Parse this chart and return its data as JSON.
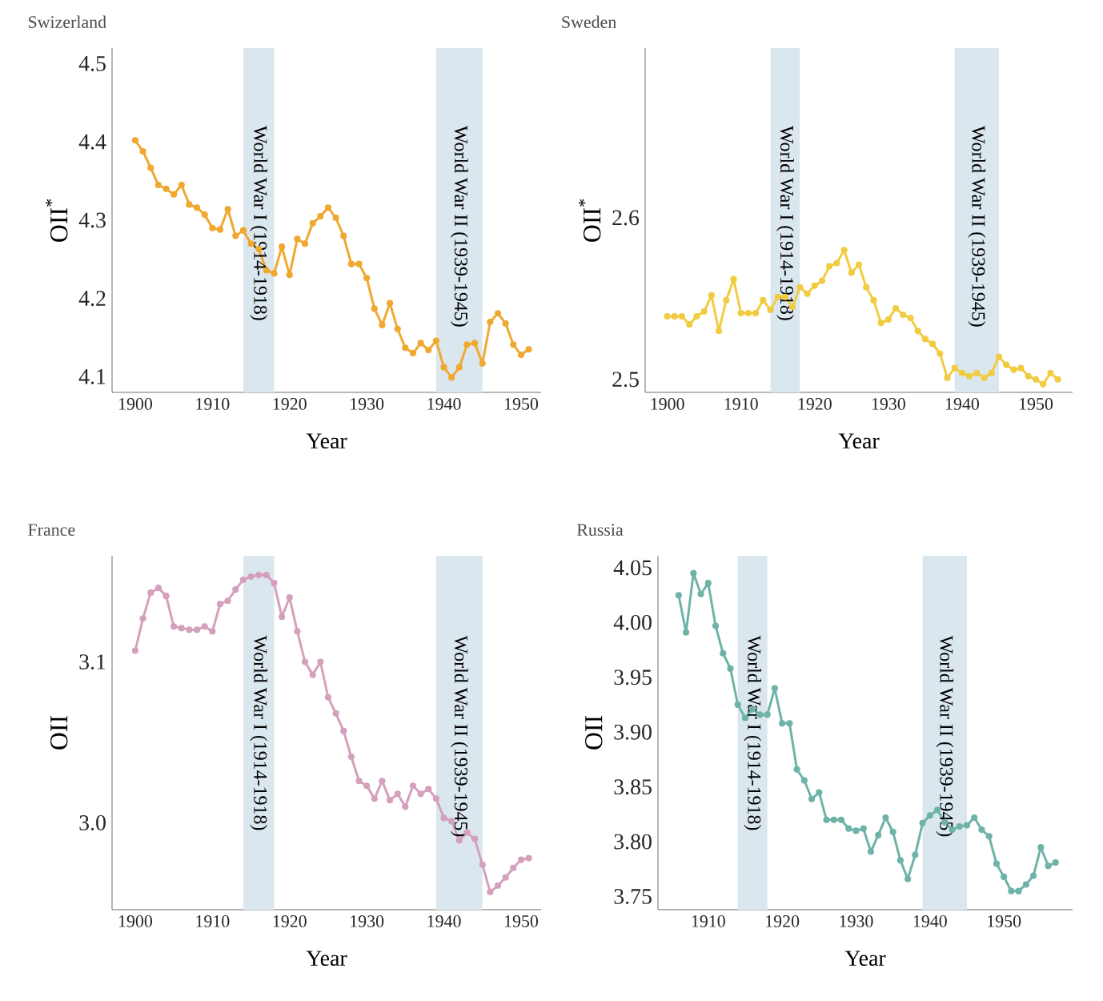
{
  "chart_data": [
    {
      "type": "line",
      "title": "Swizerland",
      "xlabel": "Year",
      "ylabel": "OII$^{*}$",
      "marker": "circle",
      "line_style": "solid",
      "xlim": [
        1897,
        1952.6
      ],
      "ylim": [
        4.08,
        4.52
      ],
      "xticks": [
        1900,
        1910,
        1920,
        1930,
        1940,
        1950
      ],
      "yticks": [
        4.1,
        4.2,
        4.3,
        4.4,
        4.5
      ],
      "bands": [
        {
          "axis": "x",
          "from": 1914,
          "to": 1918,
          "label": "World War I (1914-1918)",
          "color": "#dbe7ee"
        },
        {
          "axis": "x",
          "from": 1939,
          "to": 1945,
          "label": "World War II (1939-1945)",
          "color": "#dbe7ee"
        }
      ],
      "series": [
        {
          "color": "#f0a830",
          "x": [
            1900,
            1901,
            1902,
            1903,
            1904,
            1905,
            1906,
            1907,
            1908,
            1909,
            1910,
            1911,
            1912,
            1913,
            1914,
            1915,
            1916,
            1917,
            1918,
            1919,
            1920,
            1921,
            1922,
            1923,
            1924,
            1925,
            1926,
            1927,
            1928,
            1929,
            1930,
            1931,
            1932,
            1933,
            1934,
            1935,
            1936,
            1937,
            1938,
            1939,
            1940,
            1941,
            1942,
            1943,
            1944,
            1945,
            1946,
            1947,
            1948,
            1949,
            1950,
            1951
          ],
          "values": [
            4.402,
            4.388,
            4.367,
            4.345,
            4.34,
            4.333,
            4.345,
            4.32,
            4.316,
            4.307,
            4.29,
            4.288,
            4.314,
            4.28,
            4.287,
            4.27,
            4.263,
            4.236,
            4.232,
            4.266,
            4.23,
            4.276,
            4.27,
            4.296,
            4.305,
            4.316,
            4.303,
            4.28,
            4.244,
            4.244,
            4.226,
            4.187,
            4.166,
            4.194,
            4.161,
            4.137,
            4.13,
            4.143,
            4.134,
            4.146,
            4.112,
            4.099,
            4.112,
            4.141,
            4.143,
            4.117,
            4.17,
            4.181,
            4.168,
            4.141,
            4.128,
            4.135
          ]
        }
      ]
    },
    {
      "type": "line",
      "title": "Sweden",
      "xlabel": "Year",
      "ylabel": "OII$^{*}$",
      "marker": "circle",
      "line_style": "solid",
      "xlim": [
        1897,
        1955
      ],
      "ylim": [
        2.492,
        2.705
      ],
      "xticks": [
        1900,
        1910,
        1920,
        1930,
        1940,
        1950
      ],
      "yticks": [
        2.5,
        2.6
      ],
      "bands": [
        {
          "axis": "x",
          "from": 1914,
          "to": 1918,
          "label": "World War I (1914-1918)",
          "color": "#dbe7ee"
        },
        {
          "axis": "x",
          "from": 1939,
          "to": 1945,
          "label": "World War II (1939-1945)",
          "color": "#dbe7ee"
        }
      ],
      "series": [
        {
          "color": "#f2cc40",
          "x": [
            1900,
            1901,
            1902,
            1903,
            1904,
            1905,
            1906,
            1907,
            1908,
            1909,
            1910,
            1911,
            1912,
            1913,
            1914,
            1915,
            1916,
            1917,
            1918,
            1919,
            1920,
            1921,
            1922,
            1923,
            1924,
            1925,
            1926,
            1927,
            1928,
            1929,
            1930,
            1931,
            1932,
            1933,
            1934,
            1935,
            1936,
            1937,
            1938,
            1939,
            1940,
            1941,
            1942,
            1943,
            1944,
            1945,
            1946,
            1947,
            1948,
            1949,
            1950,
            1951,
            1952,
            1953
          ],
          "values": [
            2.539,
            2.539,
            2.539,
            2.534,
            2.539,
            2.542,
            2.552,
            2.53,
            2.549,
            2.562,
            2.541,
            2.541,
            2.541,
            2.549,
            2.543,
            2.551,
            2.551,
            2.545,
            2.557,
            2.553,
            2.558,
            2.561,
            2.57,
            2.572,
            2.58,
            2.566,
            2.571,
            2.557,
            2.549,
            2.535,
            2.537,
            2.544,
            2.54,
            2.538,
            2.53,
            2.525,
            2.522,
            2.516,
            2.501,
            2.507,
            2.504,
            2.502,
            2.504,
            2.501,
            2.504,
            2.514,
            2.509,
            2.506,
            2.507,
            2.502,
            2.5,
            2.497,
            2.504,
            2.5
          ]
        }
      ]
    },
    {
      "type": "line",
      "title": "France",
      "xlabel": "Year",
      "ylabel": "OII",
      "marker": "circle",
      "line_style": "solid",
      "xlim": [
        1897,
        1952.6
      ],
      "ylim": [
        2.946,
        3.166
      ],
      "xticks": [
        1900,
        1910,
        1920,
        1930,
        1940,
        1950
      ],
      "yticks": [
        {
          "value": 3.0,
          "label": "3.0"
        },
        3.1
      ],
      "bands": [
        {
          "axis": "x",
          "from": 1914,
          "to": 1918,
          "label": "World War I (1914-1918)",
          "color": "#dbe7ee"
        },
        {
          "axis": "x",
          "from": 1939,
          "to": 1945,
          "label": "World War II (1939-1945)",
          "color": "#dbe7ee"
        }
      ],
      "series": [
        {
          "color": "#d4a0bc",
          "x": [
            1900,
            1901,
            1902,
            1903,
            1904,
            1905,
            1906,
            1907,
            1908,
            1909,
            1910,
            1911,
            1912,
            1913,
            1914,
            1915,
            1916,
            1917,
            1918,
            1919,
            1920,
            1921,
            1922,
            1923,
            1924,
            1925,
            1926,
            1927,
            1928,
            1929,
            1930,
            1931,
            1932,
            1933,
            1934,
            1935,
            1936,
            1937,
            1938,
            1939,
            1940,
            1941,
            1942,
            1943,
            1944,
            1945,
            1946,
            1947,
            1948,
            1949,
            1950,
            1951
          ],
          "values": [
            3.107,
            3.127,
            3.143,
            3.146,
            3.141,
            3.122,
            3.121,
            3.12,
            3.12,
            3.122,
            3.119,
            3.136,
            3.138,
            3.145,
            3.151,
            3.153,
            3.154,
            3.154,
            3.149,
            3.128,
            3.14,
            3.119,
            3.1,
            3.092,
            3.1,
            3.078,
            3.068,
            3.057,
            3.041,
            3.026,
            3.023,
            3.015,
            3.026,
            3.014,
            3.018,
            3.01,
            3.023,
            3.018,
            3.021,
            3.015,
            3.003,
            3.001,
            2.989,
            2.994,
            2.99,
            2.974,
            2.957,
            2.961,
            2.966,
            2.972,
            2.977,
            2.978
          ]
        }
      ]
    },
    {
      "type": "line",
      "title": "Russia",
      "xlabel": "Year",
      "ylabel": "OII",
      "marker": "circle",
      "line_style": "solid",
      "xlim": [
        1903.2,
        1959.3
      ],
      "ylim": [
        3.738,
        4.061
      ],
      "xticks": [
        1910,
        1920,
        1930,
        1940,
        1950
      ],
      "yticks": [
        3.75,
        {
          "value": 3.8,
          "label": "3.80"
        },
        3.85,
        {
          "value": 3.9,
          "label": "3.90"
        },
        3.95,
        {
          "value": 4.0,
          "label": "4.00"
        },
        4.05
      ],
      "bands": [
        {
          "axis": "x",
          "from": 1914,
          "to": 1918,
          "label": "World War I (1914-1918)",
          "color": "#dbe7ee"
        },
        {
          "axis": "x",
          "from": 1939,
          "to": 1945,
          "label": "World War II (1939-1945)",
          "color": "#dbe7ee"
        }
      ],
      "series": [
        {
          "color": "#6fb3a8",
          "x": [
            1906,
            1907,
            1908,
            1909,
            1910,
            1911,
            1912,
            1913,
            1914,
            1915,
            1916,
            1917,
            1918,
            1919,
            1920,
            1921,
            1922,
            1923,
            1924,
            1925,
            1926,
            1927,
            1928,
            1929,
            1930,
            1931,
            1932,
            1933,
            1934,
            1935,
            1936,
            1937,
            1938,
            1939,
            1940,
            1941,
            1942,
            1943,
            1944,
            1945,
            1946,
            1947,
            1948,
            1949,
            1950,
            1951,
            1952,
            1953,
            1954,
            1955,
            1956,
            1957
          ],
          "values": [
            4.025,
            3.991,
            4.045,
            4.026,
            4.036,
            3.997,
            3.972,
            3.958,
            3.925,
            3.913,
            3.921,
            3.916,
            3.916,
            3.94,
            3.908,
            3.908,
            3.866,
            3.856,
            3.839,
            3.845,
            3.82,
            3.82,
            3.82,
            3.812,
            3.81,
            3.812,
            3.791,
            3.806,
            3.822,
            3.809,
            3.783,
            3.766,
            3.788,
            3.817,
            3.824,
            3.829,
            3.818,
            3.811,
            3.814,
            3.815,
            3.822,
            3.811,
            3.805,
            3.78,
            3.768,
            3.755,
            3.755,
            3.761,
            3.769,
            3.795,
            3.778,
            3.781
          ]
        }
      ]
    }
  ]
}
